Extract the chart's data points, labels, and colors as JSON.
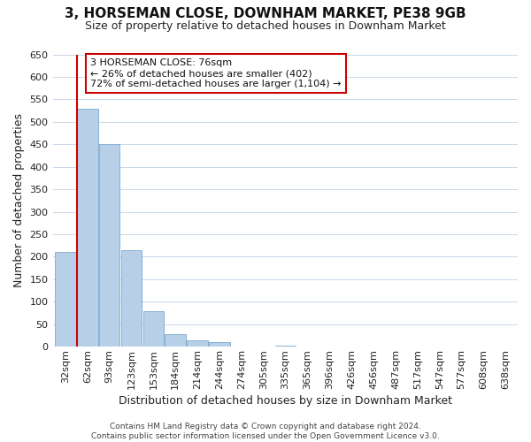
{
  "title": "3, HORSEMAN CLOSE, DOWNHAM MARKET, PE38 9GB",
  "subtitle": "Size of property relative to detached houses in Downham Market",
  "xlabel": "Distribution of detached houses by size in Downham Market",
  "ylabel": "Number of detached properties",
  "bar_labels": [
    "32sqm",
    "62sqm",
    "93sqm",
    "123sqm",
    "153sqm",
    "184sqm",
    "214sqm",
    "244sqm",
    "274sqm",
    "305sqm",
    "335sqm",
    "365sqm",
    "396sqm",
    "426sqm",
    "456sqm",
    "487sqm",
    "517sqm",
    "547sqm",
    "577sqm",
    "608sqm",
    "638sqm"
  ],
  "bar_values": [
    210,
    530,
    450,
    215,
    78,
    28,
    15,
    10,
    0,
    0,
    2,
    0,
    0,
    0,
    0,
    1,
    0,
    0,
    0,
    1,
    1
  ],
  "bar_color": "#b8cfe8",
  "bar_edge_color": "#7aaad0",
  "vline_color": "#cc0000",
  "vline_x_index": 1,
  "ylim": [
    0,
    650
  ],
  "yticks": [
    0,
    50,
    100,
    150,
    200,
    250,
    300,
    350,
    400,
    450,
    500,
    550,
    600,
    650
  ],
  "annotation_title": "3 HORSEMAN CLOSE: 76sqm",
  "annotation_line1": "← 26% of detached houses are smaller (402)",
  "annotation_line2": "72% of semi-detached houses are larger (1,104) →",
  "annotation_box_facecolor": "#ffffff",
  "annotation_box_edgecolor": "#cc0000",
  "footer_line1": "Contains HM Land Registry data © Crown copyright and database right 2024.",
  "footer_line2": "Contains public sector information licensed under the Open Government Licence v3.0.",
  "background_color": "#ffffff",
  "grid_color": "#c8d8ec",
  "title_fontsize": 11,
  "subtitle_fontsize": 9,
  "axis_label_fontsize": 9,
  "tick_fontsize": 8,
  "annotation_fontsize": 8,
  "footer_fontsize": 6.5
}
